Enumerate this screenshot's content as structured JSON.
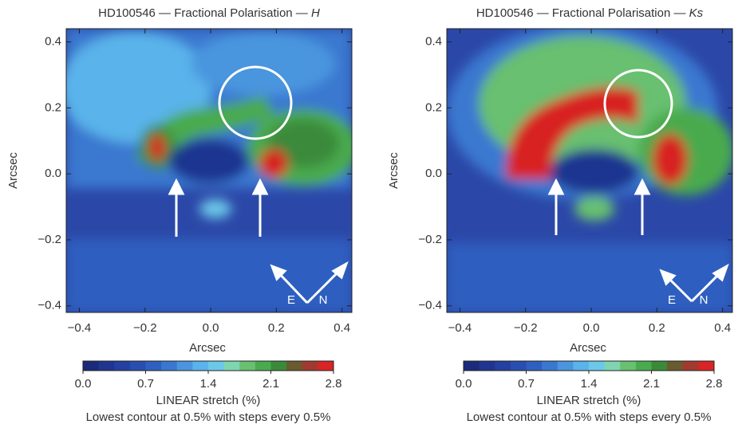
{
  "chart_data": [
    {
      "type": "heatmap",
      "title": "HD100546 — Fractional Polarisation —",
      "band": "H",
      "xlabel": "Arcsec",
      "ylabel": "Arcsec",
      "xlim": [
        -0.44,
        0.43
      ],
      "ylim": [
        -0.42,
        0.44
      ],
      "xticks": [
        {
          "value": -0.4,
          "label": "−0.4"
        },
        {
          "value": -0.2,
          "label": "−0.2"
        },
        {
          "value": 0,
          "label": "0.0"
        },
        0.2,
        0.4
      ],
      "yticks": [
        {
          "value": -0.4,
          "label": "−0.4"
        },
        {
          "value": -0.2,
          "label": "−0.2"
        },
        {
          "value": 0,
          "label": "0.0"
        },
        0.2,
        0.4
      ],
      "colorbar": {
        "label": "LINEAR stretch (%)",
        "lim": [
          0,
          2.8
        ],
        "ticks": [
          {
            "value": 0,
            "label": "0.0"
          },
          0.7,
          1.4,
          2.1,
          2.8
        ],
        "colors": [
          "#1b2a7a",
          "#1f3590",
          "#2440a0",
          "#2a4db0",
          "#2f5fc0",
          "#3a78d0",
          "#4a95de",
          "#5ab3ea",
          "#6cc8e8",
          "#7fd5b0",
          "#68c070",
          "#4aaa4e",
          "#3a8a3a",
          "#6a5a30",
          "#a03a30",
          "#d82424"
        ]
      },
      "note": "Lowest contour at 0.5% with steps every 0.5%",
      "annotations": [
        "E",
        "N"
      ]
    },
    {
      "type": "heatmap",
      "title": "HD100546 — Fractional Polarisation —",
      "band": "Ks",
      "xlabel": "Arcsec",
      "ylabel": "Arcsec",
      "xlim": [
        -0.44,
        0.43
      ],
      "ylim": [
        -0.42,
        0.44
      ],
      "xticks": [
        {
          "value": -0.4,
          "label": "−0.4"
        },
        {
          "value": -0.2,
          "label": "−0.2"
        },
        {
          "value": 0,
          "label": "0.0"
        },
        0.2,
        0.4
      ],
      "yticks": [
        {
          "value": -0.4,
          "label": "−0.4"
        },
        {
          "value": -0.2,
          "label": "−0.2"
        },
        {
          "value": 0,
          "label": "0.0"
        },
        0.2,
        0.4
      ],
      "colorbar": {
        "label": "LINEAR stretch (%)",
        "lim": [
          0,
          2.8
        ],
        "ticks": [
          {
            "value": 0,
            "label": "0.0"
          },
          0.7,
          1.4,
          2.1,
          2.8
        ],
        "colors": [
          "#1b2a7a",
          "#1f3590",
          "#2440a0",
          "#2a4db0",
          "#2f5fc0",
          "#3a78d0",
          "#4a95de",
          "#5ab3ea",
          "#6cc8e8",
          "#7fd5b0",
          "#68c070",
          "#4aaa4e",
          "#3a8a3a",
          "#6a5a30",
          "#a03a30",
          "#d82424"
        ]
      },
      "note": "Lowest contour at 0.5% with steps every 0.5%",
      "annotations": [
        "E",
        "N"
      ]
    }
  ]
}
